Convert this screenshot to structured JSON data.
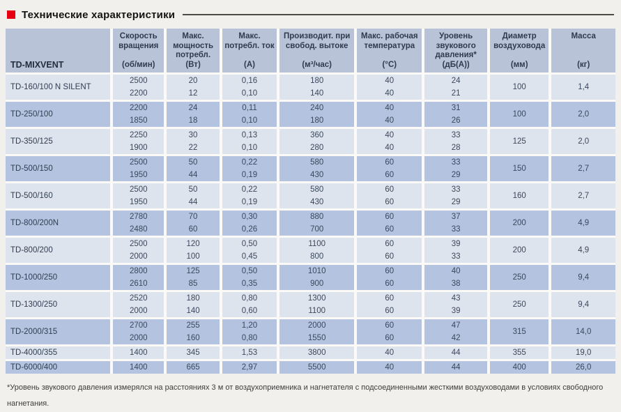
{
  "title": "Технические характеристики",
  "table": {
    "model_header": "TD-MIXVENT",
    "columns": [
      {
        "title": "Скорость вращения",
        "unit": "(об/мин)"
      },
      {
        "title": "Макс. мощность потребл.",
        "unit": "(Вт)"
      },
      {
        "title": "Макс. потребл. ток",
        "unit": "(А)"
      },
      {
        "title": "Производит. при свобод. вытоке",
        "unit": "(м³/час)"
      },
      {
        "title": "Макс. рабочая температура",
        "unit": "(°С)"
      },
      {
        "title": "Уровень звукового давления*",
        "unit": "(дБ(А))"
      },
      {
        "title": "Диаметр воздуховода",
        "unit": "(мм)"
      },
      {
        "title": "Масса",
        "unit": "(кг)"
      }
    ],
    "rows": [
      {
        "model": "TD-160/100 N SILENT",
        "speeds": [
          [
            "2500",
            "20",
            "0,16",
            "180",
            "40",
            "24"
          ],
          [
            "2200",
            "12",
            "0,10",
            "140",
            "40",
            "21"
          ]
        ],
        "diameter": "100",
        "mass": "1,4"
      },
      {
        "model": "TD-250/100",
        "speeds": [
          [
            "2200",
            "24",
            "0,11",
            "240",
            "40",
            "31"
          ],
          [
            "1850",
            "18",
            "0,10",
            "180",
            "40",
            "26"
          ]
        ],
        "diameter": "100",
        "mass": "2,0"
      },
      {
        "model": "TD-350/125",
        "speeds": [
          [
            "2250",
            "30",
            "0,13",
            "360",
            "40",
            "33"
          ],
          [
            "1900",
            "22",
            "0,10",
            "280",
            "40",
            "28"
          ]
        ],
        "diameter": "125",
        "mass": "2,0"
      },
      {
        "model": "TD-500/150",
        "speeds": [
          [
            "2500",
            "50",
            "0,22",
            "580",
            "60",
            "33"
          ],
          [
            "1950",
            "44",
            "0,19",
            "430",
            "60",
            "29"
          ]
        ],
        "diameter": "150",
        "mass": "2,7"
      },
      {
        "model": "TD-500/160",
        "speeds": [
          [
            "2500",
            "50",
            "0,22",
            "580",
            "60",
            "33"
          ],
          [
            "1950",
            "44",
            "0,19",
            "430",
            "60",
            "29"
          ]
        ],
        "diameter": "160",
        "mass": "2,7"
      },
      {
        "model": "TD-800/200N",
        "speeds": [
          [
            "2780",
            "70",
            "0,30",
            "880",
            "60",
            "37"
          ],
          [
            "2480",
            "60",
            "0,26",
            "700",
            "60",
            "33"
          ]
        ],
        "diameter": "200",
        "mass": "4,9"
      },
      {
        "model": "TD-800/200",
        "speeds": [
          [
            "2500",
            "120",
            "0,50",
            "1100",
            "60",
            "39"
          ],
          [
            "2000",
            "100",
            "0,45",
            "800",
            "60",
            "33"
          ]
        ],
        "diameter": "200",
        "mass": "4,9"
      },
      {
        "model": "TD-1000/250",
        "speeds": [
          [
            "2800",
            "125",
            "0,50",
            "1010",
            "60",
            "40"
          ],
          [
            "2610",
            "85",
            "0,35",
            "900",
            "60",
            "38"
          ]
        ],
        "diameter": "250",
        "mass": "9,4"
      },
      {
        "model": "TD-1300/250",
        "speeds": [
          [
            "2520",
            "180",
            "0,80",
            "1300",
            "60",
            "43"
          ],
          [
            "2000",
            "140",
            "0,60",
            "1100",
            "60",
            "39"
          ]
        ],
        "diameter": "250",
        "mass": "9,4"
      },
      {
        "model": "TD-2000/315",
        "speeds": [
          [
            "2700",
            "255",
            "1,20",
            "2000",
            "60",
            "47"
          ],
          [
            "2000",
            "160",
            "0,80",
            "1550",
            "60",
            "42"
          ]
        ],
        "diameter": "315",
        "mass": "14,0"
      },
      {
        "model": "TD-4000/355",
        "speeds": [
          [
            "1400",
            "345",
            "1,53",
            "3800",
            "40",
            "44"
          ]
        ],
        "diameter": "355",
        "mass": "19,0"
      },
      {
        "model": "TD-6000/400",
        "speeds": [
          [
            "1400",
            "665",
            "2,97",
            "5500",
            "40",
            "44"
          ]
        ],
        "diameter": "400",
        "mass": "26,0"
      }
    ]
  },
  "footnote": "*Уровень звукового давления измерялся на расстояниях 3 м от воздухоприемника и нагнетателя с подсоединенными жесткими воздуховодами в условиях свободного нагнетания.",
  "colors": {
    "accent_red": "#e60012",
    "header_bg": "#b9c3d7",
    "row_light": "#dee4ee",
    "row_dark": "#b4c3e0"
  }
}
